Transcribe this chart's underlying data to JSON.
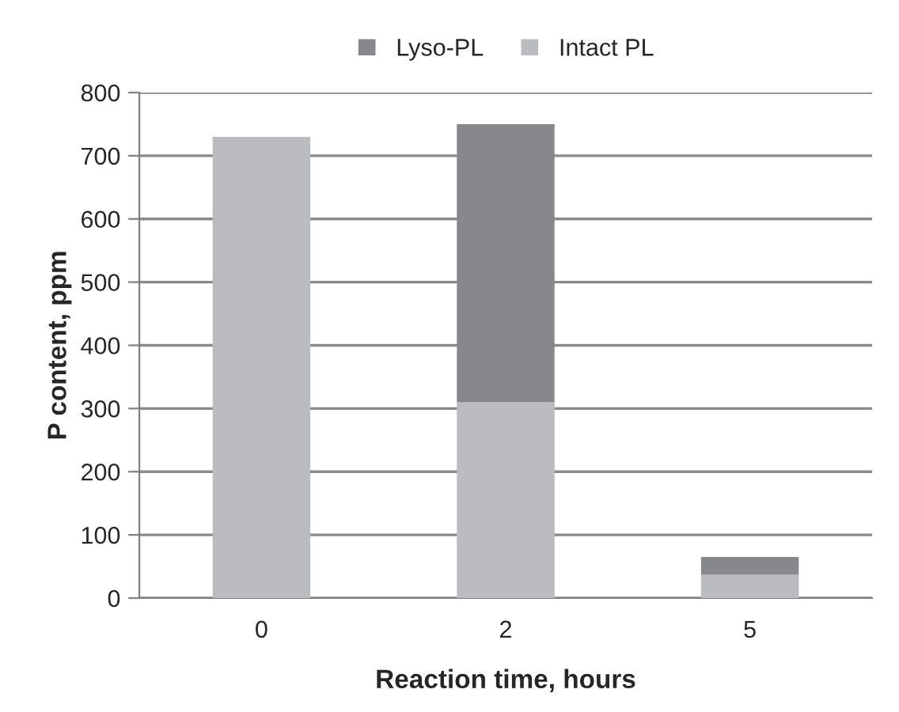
{
  "chart_data": {
    "type": "bar",
    "stacked": true,
    "xlabel": "Reaction time, hours",
    "ylabel": "P content, ppm",
    "categories": [
      "0",
      "2",
      "5"
    ],
    "series": [
      {
        "name": "Intact PL",
        "color": "#bbbcbf",
        "values": [
          730,
          310,
          37
        ]
      },
      {
        "name": "Lyso-PL",
        "color": "#87888c",
        "values": [
          null,
          440,
          28
        ]
      }
    ],
    "ylim": [
      0,
      800
    ],
    "yticks": [
      0,
      100,
      200,
      300,
      400,
      500,
      600,
      700,
      800
    ],
    "grid": "y",
    "legend": "top"
  }
}
